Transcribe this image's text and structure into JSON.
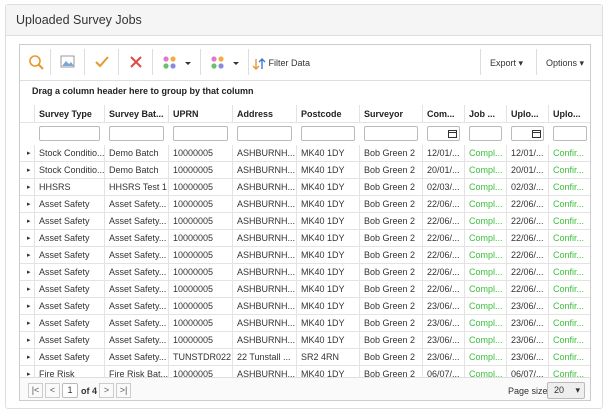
{
  "header": {
    "title": "Uploaded Survey Jobs"
  },
  "toolbar": {
    "filter_label": "Filter Data",
    "export": "Export",
    "options": "Options"
  },
  "grid": {
    "group_hint": "Drag a column header here to group by that column",
    "columns": [
      "Survey Type",
      "Survey Bat...",
      "UPRN",
      "Address",
      "Postcode",
      "Surveyor",
      "Com...",
      "Job ...",
      "Uplo...",
      "Uplo..."
    ],
    "rows": [
      [
        "Stock Conditio...",
        "Demo Batch",
        "10000005",
        "ASHBURNH...",
        "MK40 1DY",
        "Bob Green 2",
        "12/01/...",
        "Compl...",
        "12/01/...",
        "Confir..."
      ],
      [
        "Stock Conditio...",
        "Demo Batch",
        "10000005",
        "ASHBURNH...",
        "MK40 1DY",
        "Bob Green 2",
        "20/01/...",
        "Compl...",
        "20/01/...",
        "Confir..."
      ],
      [
        "HHSRS",
        "HHSRS Test 1",
        "10000005",
        "ASHBURNH...",
        "MK40 1DY",
        "Bob Green 2",
        "02/03/...",
        "Compl...",
        "02/03/...",
        "Confir..."
      ],
      [
        "Asset Safety",
        "Asset Safety...",
        "10000005",
        "ASHBURNH...",
        "MK40 1DY",
        "Bob Green 2",
        "22/06/...",
        "Compl...",
        "22/06/...",
        "Confir..."
      ],
      [
        "Asset Safety",
        "Asset Safety...",
        "10000005",
        "ASHBURNH...",
        "MK40 1DY",
        "Bob Green 2",
        "22/06/...",
        "Compl...",
        "22/06/...",
        "Confir..."
      ],
      [
        "Asset Safety",
        "Asset Safety...",
        "10000005",
        "ASHBURNH...",
        "MK40 1DY",
        "Bob Green 2",
        "22/06/...",
        "Compl...",
        "22/06/...",
        "Confir..."
      ],
      [
        "Asset Safety",
        "Asset Safety...",
        "10000005",
        "ASHBURNH...",
        "MK40 1DY",
        "Bob Green 2",
        "22/06/...",
        "Compl...",
        "22/06/...",
        "Confir..."
      ],
      [
        "Asset Safety",
        "Asset Safety...",
        "10000005",
        "ASHBURNH...",
        "MK40 1DY",
        "Bob Green 2",
        "22/06/...",
        "Compl...",
        "22/06/...",
        "Confir..."
      ],
      [
        "Asset Safety",
        "Asset Safety...",
        "10000005",
        "ASHBURNH...",
        "MK40 1DY",
        "Bob Green 2",
        "22/06/...",
        "Compl...",
        "22/06/...",
        "Confir..."
      ],
      [
        "Asset Safety",
        "Asset Safety...",
        "10000005",
        "ASHBURNH...",
        "MK40 1DY",
        "Bob Green 2",
        "23/06/...",
        "Compl...",
        "23/06/...",
        "Confir..."
      ],
      [
        "Asset Safety",
        "Asset Safety...",
        "10000005",
        "ASHBURNH...",
        "MK40 1DY",
        "Bob Green 2",
        "23/06/...",
        "Compl...",
        "23/06/...",
        "Confir..."
      ],
      [
        "Asset Safety",
        "Asset Safety...",
        "10000005",
        "ASHBURNH...",
        "MK40 1DY",
        "Bob Green 2",
        "23/06/...",
        "Compl...",
        "23/06/...",
        "Confir..."
      ],
      [
        "Asset Safety",
        "Asset Safety...",
        "TUNSTDR022",
        "22 Tunstall ...",
        "SR2 4RN",
        "Bob Green 2",
        "23/06/...",
        "Compl...",
        "23/06/...",
        "Confir..."
      ],
      [
        "Fire Risk",
        "Fire Risk Bat...",
        "10000005",
        "ASHBURNH...",
        "MK40 1DY",
        "Bob Green 2",
        "06/07/...",
        "Compl...",
        "06/07/...",
        "Confir..."
      ]
    ]
  },
  "pager": {
    "page": 1,
    "of_pages": "of 4",
    "page_size_label": "Page size:",
    "page_size": 20
  }
}
